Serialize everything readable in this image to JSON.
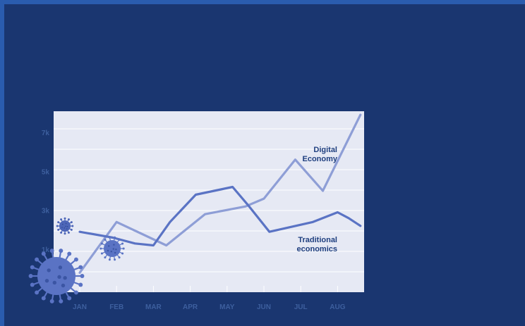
{
  "chart_data": {
    "type": "line",
    "x": [
      "JAN",
      "FEB",
      "MAR",
      "APR",
      "MAY",
      "JUN",
      "JUL",
      "AUG"
    ],
    "ytick_labels": [
      "7k",
      "5k",
      "3k",
      "1k"
    ],
    "ytick_values": [
      7000,
      5000,
      3000,
      1000
    ],
    "ylim": [
      -1200,
      7900
    ],
    "grid": true,
    "series": [
      {
        "name": "Digital Economy",
        "color": "#8e9ed6",
        "x": [
          0.0,
          1.0,
          2.35,
          3.4,
          4.5,
          5.0,
          5.85,
          6.6,
          7.62
        ],
        "values": [
          -200,
          2400,
          1200,
          2800,
          3200,
          3600,
          5600,
          4000,
          7900
        ]
      },
      {
        "name": "Traditional economics",
        "color": "#5a73c4",
        "x": [
          0.0,
          0.9,
          1.5,
          2.0,
          2.45,
          3.15,
          4.15,
          4.6,
          5.15,
          6.33,
          7.0,
          7.3,
          7.62
        ],
        "values": [
          1900,
          1600,
          1300,
          1200,
          2400,
          3800,
          4200,
          3200,
          1900,
          2400,
          2900,
          2600,
          2200
        ]
      }
    ]
  },
  "decorations": {
    "virus_icons": [
      "virus-icon-large",
      "virus-icon-small",
      "virus-icon-medium"
    ],
    "colors": {
      "background": "#1a3670",
      "border": "#2a5cae",
      "plot_area": "#e6e9f4",
      "virus": "#5a73c4"
    }
  }
}
